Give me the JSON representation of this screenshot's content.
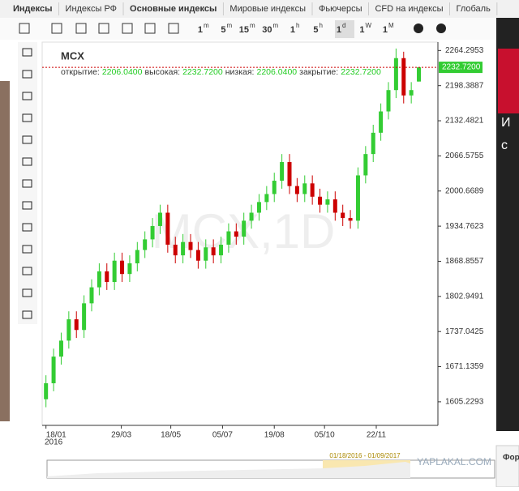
{
  "tabs": [
    "Индексы",
    "Индексы РФ",
    "Основные индексы",
    "Мировые индексы",
    "Фьючерсы",
    "CFD на индексы",
    "Глобаль"
  ],
  "timeframes": [
    [
      "1",
      "m"
    ],
    [
      "5",
      "m"
    ],
    [
      "15",
      "m"
    ],
    [
      "30",
      "m"
    ],
    [
      "1",
      "h"
    ],
    [
      "5",
      "h"
    ],
    [
      "1",
      "d"
    ],
    [
      "1",
      "W"
    ],
    [
      "1",
      "M"
    ]
  ],
  "header": {
    "symbol": "MCX",
    "open_label": "открытие:",
    "open": "2206.0400",
    "high_label": "высокая:",
    "high": "2232.7200",
    "low_label": "низкая:",
    "low": "2206.0400",
    "close_label": "закрытие:",
    "close": "2232.7200"
  },
  "watermark": "MCX,1D",
  "site_watermark": "YAPLAKAL.COM",
  "navigator_range": "01/18/2016 - 01/09/2017",
  "side_text": [
    "И",
    "с",
    "Фор"
  ],
  "chart_data": {
    "type": "candlestick",
    "up_color": "#33cc33",
    "down_color": "#cc0000",
    "open": [
      1610,
      1640,
      1690,
      1720,
      1760,
      1740,
      1790,
      1820,
      1850,
      1830,
      1870,
      1845,
      1865,
      1890,
      1910,
      1935,
      1960,
      1900,
      1880,
      1905,
      1890,
      1870,
      1895,
      1880,
      1900,
      1925,
      1915,
      1945,
      1960,
      1980,
      1995,
      2020,
      2055,
      2010,
      1995,
      2015,
      1990,
      1975,
      1985,
      1960,
      1950,
      1945,
      2030,
      2070,
      2110,
      2150,
      2190,
      2250,
      2180,
      2206.04
    ],
    "high": [
      1655,
      1705,
      1735,
      1775,
      1775,
      1805,
      1835,
      1865,
      1865,
      1885,
      1885,
      1880,
      1905,
      1925,
      1950,
      1975,
      1975,
      1915,
      1920,
      1920,
      1905,
      1910,
      1910,
      1915,
      1940,
      1940,
      1960,
      1975,
      1995,
      2010,
      2035,
      2070,
      2070,
      2025,
      2030,
      2030,
      2005,
      2000,
      2000,
      1975,
      1965,
      2045,
      2085,
      2125,
      2165,
      2205,
      2268,
      2262,
      2205,
      2232.72
    ],
    "low": [
      1595,
      1625,
      1675,
      1705,
      1725,
      1725,
      1775,
      1805,
      1815,
      1815,
      1830,
      1830,
      1850,
      1875,
      1895,
      1920,
      1885,
      1865,
      1865,
      1875,
      1855,
      1855,
      1865,
      1865,
      1885,
      1900,
      1900,
      1930,
      1945,
      1965,
      1980,
      2005,
      1995,
      1980,
      1980,
      1975,
      1960,
      1960,
      1945,
      1935,
      1930,
      1930,
      2015,
      2055,
      2095,
      2135,
      2175,
      2165,
      2165,
      2206.04
    ],
    "close": [
      1640,
      1690,
      1720,
      1760,
      1740,
      1790,
      1820,
      1850,
      1830,
      1870,
      1845,
      1865,
      1890,
      1910,
      1935,
      1960,
      1900,
      1880,
      1905,
      1890,
      1870,
      1895,
      1880,
      1900,
      1925,
      1915,
      1945,
      1960,
      1980,
      1995,
      2020,
      2055,
      2010,
      1995,
      2015,
      1990,
      1975,
      1985,
      1960,
      1950,
      1945,
      2030,
      2070,
      2110,
      2150,
      2190,
      2250,
      2180,
      2190,
      2232.72
    ],
    "last_price": 2232.72,
    "last_price_label": "2232.7200",
    "xlim": [
      -0.5,
      51.5
    ],
    "xticks": [
      {
        "value": 0,
        "label": "18/01"
      },
      {
        "value": 9.9,
        "label": "29/03"
      },
      {
        "value": 16.4,
        "label": "18/05"
      },
      {
        "value": 23.2,
        "label": "05/07"
      },
      {
        "value": 30,
        "label": "19/08"
      },
      {
        "value": 36.6,
        "label": "05/10"
      },
      {
        "value": 43.4,
        "label": "22/11"
      }
    ],
    "year_label": "2016",
    "ylim": [
      1561,
      2280
    ],
    "yticks": [
      2264.2953,
      2198.3887,
      2132.4821,
      2066.5755,
      2000.6689,
      1934.7623,
      1868.8557,
      1802.9491,
      1737.0425,
      1671.1359,
      1605.2293
    ]
  }
}
